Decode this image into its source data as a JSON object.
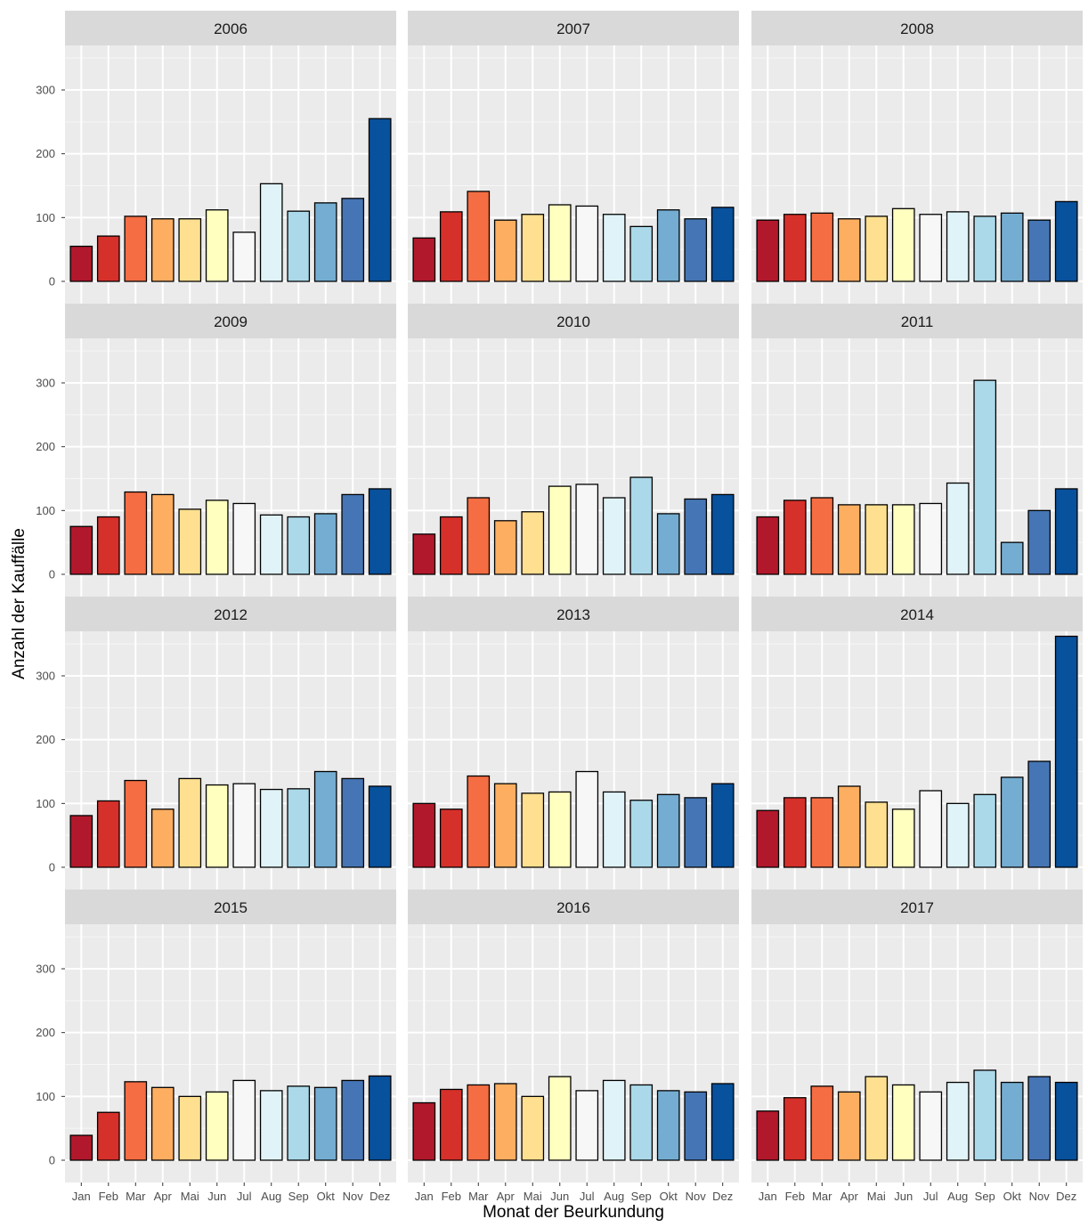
{
  "chart_data": {
    "type": "bar",
    "layout": "facet-grid-4x3",
    "xlabel": "Monat der Beurkundung",
    "ylabel": "Anzahl der Kauffälle",
    "ylim": [
      0,
      370
    ],
    "yticks": [
      0,
      100,
      200,
      300
    ],
    "grid": true,
    "categories": [
      "Jan",
      "Feb",
      "Mar",
      "Apr",
      "Mai",
      "Jun",
      "Jul",
      "Aug",
      "Sep",
      "Okt",
      "Nov",
      "Dez"
    ],
    "month_colors": [
      "#B2182B",
      "#D6302A",
      "#F46D43",
      "#FDAE61",
      "#FEE090",
      "#FFFFBF",
      "#F7F7F7",
      "#E0F3F8",
      "#ABD9E9",
      "#74ADD1",
      "#4575B4",
      "#08519C"
    ],
    "panels": [
      {
        "year": "2006",
        "values": [
          55,
          71,
          102,
          98,
          98,
          112,
          77,
          153,
          110,
          123,
          130,
          255
        ]
      },
      {
        "year": "2007",
        "values": [
          68,
          109,
          141,
          96,
          105,
          120,
          118,
          105,
          86,
          112,
          98,
          116
        ]
      },
      {
        "year": "2008",
        "values": [
          96,
          105,
          107,
          98,
          102,
          114,
          105,
          109,
          102,
          107,
          96,
          125
        ]
      },
      {
        "year": "2009",
        "values": [
          75,
          90,
          129,
          125,
          102,
          116,
          111,
          93,
          90,
          95,
          125,
          134
        ]
      },
      {
        "year": "2010",
        "values": [
          63,
          90,
          120,
          84,
          98,
          138,
          141,
          120,
          152,
          95,
          118,
          125
        ]
      },
      {
        "year": "2011",
        "values": [
          90,
          116,
          120,
          109,
          109,
          109,
          111,
          143,
          304,
          50,
          100,
          134
        ]
      },
      {
        "year": "2012",
        "values": [
          81,
          104,
          136,
          91,
          139,
          129,
          131,
          122,
          123,
          150,
          139,
          127
        ]
      },
      {
        "year": "2013",
        "values": [
          100,
          91,
          143,
          131,
          116,
          118,
          150,
          118,
          105,
          114,
          109,
          131
        ]
      },
      {
        "year": "2014",
        "values": [
          89,
          109,
          109,
          127,
          102,
          91,
          120,
          100,
          114,
          141,
          166,
          362
        ]
      },
      {
        "year": "2015",
        "values": [
          39,
          75,
          123,
          114,
          100,
          107,
          125,
          109,
          116,
          114,
          125,
          132
        ]
      },
      {
        "year": "2016",
        "values": [
          90,
          111,
          118,
          120,
          100,
          131,
          109,
          125,
          118,
          109,
          107,
          120
        ]
      },
      {
        "year": "2017",
        "values": [
          77,
          98,
          116,
          107,
          131,
          118,
          107,
          122,
          141,
          122,
          131,
          122
        ]
      }
    ]
  }
}
